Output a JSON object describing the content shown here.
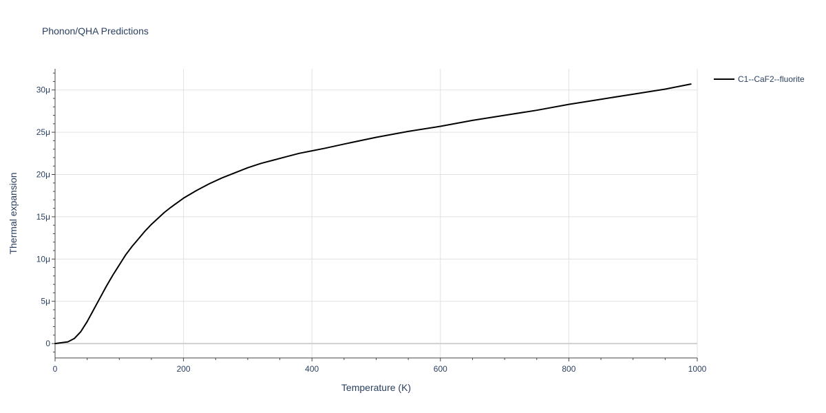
{
  "chart_data": {
    "type": "line",
    "title": "Phonon/QHA Predictions",
    "xlabel": "Temperature (K)",
    "ylabel": "Thermal expansion",
    "xlim": [
      0,
      1000
    ],
    "ylim": [
      -1.7e-06,
      3.25e-05
    ],
    "x_ticks": [
      0,
      200,
      400,
      600,
      800,
      1000
    ],
    "x_tick_labels": [
      "0",
      "200",
      "400",
      "600",
      "800",
      "1000"
    ],
    "y_ticks": [
      0,
      5e-06,
      1e-05,
      1.5e-05,
      2e-05,
      2.5e-05,
      3e-05
    ],
    "y_tick_labels": [
      "0",
      "5μ",
      "10μ",
      "15μ",
      "20μ",
      "25μ",
      "30μ"
    ],
    "grid": true,
    "legend_position": "top-right, outside plot",
    "colors": {
      "series": "#000000",
      "grid": "#e1e1e1",
      "zero_line": "#d0d0d0",
      "text": "#2a3f5f"
    },
    "series": [
      {
        "name": "C1--CaF2--fluorite",
        "x": [
          0,
          10,
          20,
          30,
          40,
          50,
          60,
          70,
          80,
          90,
          100,
          110,
          120,
          130,
          140,
          150,
          160,
          170,
          180,
          200,
          220,
          240,
          260,
          280,
          300,
          320,
          340,
          360,
          380,
          400,
          420,
          450,
          500,
          550,
          600,
          650,
          700,
          750,
          800,
          850,
          900,
          950,
          990
        ],
        "y": [
          0,
          1e-07,
          2e-07,
          6e-07,
          1.4e-06,
          2.6e-06,
          4e-06,
          5.4e-06,
          6.8e-06,
          8.1e-06,
          9.3e-06,
          1.05e-05,
          1.15e-05,
          1.24e-05,
          1.33e-05,
          1.41e-05,
          1.48e-05,
          1.55e-05,
          1.61e-05,
          1.72e-05,
          1.81e-05,
          1.89e-05,
          1.96e-05,
          2.02e-05,
          2.08e-05,
          2.13e-05,
          2.17e-05,
          2.21e-05,
          2.25e-05,
          2.28e-05,
          2.31e-05,
          2.36e-05,
          2.44e-05,
          2.51e-05,
          2.57e-05,
          2.64e-05,
          2.7e-05,
          2.76e-05,
          2.83e-05,
          2.89e-05,
          2.95e-05,
          3.01e-05,
          3.07e-05
        ]
      }
    ]
  }
}
